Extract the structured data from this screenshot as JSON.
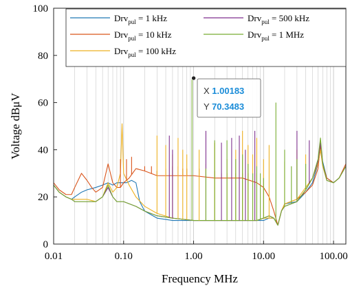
{
  "chart_data": {
    "type": "line",
    "x_scale": "log",
    "xlabel": "Frequency MHz",
    "ylabel": "Voltage dBμV",
    "xlim": [
      0.01,
      150
    ],
    "ylim": [
      0,
      100
    ],
    "x_ticks": [
      0.01,
      0.1,
      1,
      10,
      100
    ],
    "x_tick_labels": [
      "0.01",
      "0.10",
      "1.00",
      "10.00",
      "100.00"
    ],
    "y_ticks": [
      0,
      20,
      40,
      60,
      80,
      100
    ],
    "y_tick_labels": [
      "0",
      "20",
      "40",
      "60",
      "80",
      "100"
    ],
    "grid": "on (log minor vertical lines)",
    "legend": {
      "placement": "top",
      "entries": [
        {
          "base": "Drv",
          "sub": "pul",
          "suffix": " = 1 kHz"
        },
        {
          "base": "Drv",
          "sub": "pul",
          "suffix": " = 10 kHz"
        },
        {
          "base": "Drv",
          "sub": "pul",
          "suffix": " = 100 kHz"
        },
        {
          "base": "Drv",
          "sub": "pul",
          "suffix": " = 500 kHz"
        },
        {
          "base": "Drv",
          "sub": "pul",
          "suffix": " = 1 MHz"
        }
      ]
    },
    "series": [
      {
        "name": "Drvpul = 1 kHz",
        "color": "#1f77b4",
        "points": [
          [
            0.01,
            25
          ],
          [
            0.012,
            22
          ],
          [
            0.015,
            20
          ],
          [
            0.018,
            19
          ],
          [
            0.02,
            20
          ],
          [
            0.025,
            22
          ],
          [
            0.03,
            23
          ],
          [
            0.04,
            24
          ],
          [
            0.05,
            25
          ],
          [
            0.06,
            26
          ],
          [
            0.07,
            25
          ],
          [
            0.08,
            26
          ],
          [
            0.09,
            26
          ],
          [
            0.1,
            26
          ],
          [
            0.11,
            26
          ],
          [
            0.13,
            27
          ],
          [
            0.15,
            26
          ],
          [
            0.17,
            18
          ],
          [
            0.2,
            14
          ],
          [
            0.3,
            11
          ],
          [
            0.5,
            10
          ],
          [
            1,
            10
          ],
          [
            2,
            10
          ],
          [
            3,
            10
          ],
          [
            5,
            10
          ],
          [
            8,
            10
          ],
          [
            10,
            10
          ],
          [
            12,
            11
          ],
          [
            14,
            11
          ],
          [
            16,
            8
          ],
          [
            18,
            14
          ],
          [
            20,
            17
          ],
          [
            30,
            18
          ],
          [
            40,
            22
          ],
          [
            50,
            26
          ],
          [
            60,
            34
          ],
          [
            65,
            40
          ],
          [
            70,
            35
          ],
          [
            80,
            28
          ],
          [
            100,
            26
          ],
          [
            120,
            28
          ],
          [
            150,
            33
          ]
        ]
      },
      {
        "name": "Drvpul = 10 kHz",
        "color": "#d95319",
        "points": [
          [
            0.01,
            26
          ],
          [
            0.012,
            23
          ],
          [
            0.015,
            21
          ],
          [
            0.018,
            21
          ],
          [
            0.02,
            24
          ],
          [
            0.025,
            30
          ],
          [
            0.03,
            27
          ],
          [
            0.035,
            24
          ],
          [
            0.04,
            22
          ],
          [
            0.05,
            24
          ],
          [
            0.06,
            34
          ],
          [
            0.07,
            26
          ],
          [
            0.08,
            24
          ],
          [
            0.09,
            24
          ],
          [
            0.1,
            26
          ],
          [
            0.12,
            28
          ],
          [
            0.15,
            32
          ],
          [
            0.2,
            31
          ],
          [
            0.3,
            29
          ],
          [
            0.5,
            29
          ],
          [
            1,
            29
          ],
          [
            2,
            28
          ],
          [
            3,
            28
          ],
          [
            5,
            28
          ],
          [
            8,
            26
          ],
          [
            10,
            24
          ],
          [
            12,
            20
          ],
          [
            14,
            14
          ],
          [
            16,
            8
          ],
          [
            18,
            14
          ],
          [
            20,
            17
          ],
          [
            30,
            19
          ],
          [
            40,
            22
          ],
          [
            50,
            25
          ],
          [
            60,
            32
          ],
          [
            65,
            42
          ],
          [
            70,
            34
          ],
          [
            80,
            28
          ],
          [
            100,
            26
          ],
          [
            120,
            28
          ],
          [
            150,
            34
          ]
        ]
      },
      {
        "name": "Drvpul = 100 kHz",
        "color": "#edb120",
        "points": [
          [
            0.01,
            25
          ],
          [
            0.012,
            22
          ],
          [
            0.015,
            20
          ],
          [
            0.018,
            19
          ],
          [
            0.02,
            19
          ],
          [
            0.03,
            19
          ],
          [
            0.04,
            18
          ],
          [
            0.05,
            20
          ],
          [
            0.06,
            26
          ],
          [
            0.07,
            22
          ],
          [
            0.08,
            24
          ],
          [
            0.09,
            30
          ],
          [
            0.095,
            51
          ],
          [
            0.1,
            30
          ],
          [
            0.12,
            25
          ],
          [
            0.15,
            20
          ],
          [
            0.2,
            16
          ],
          [
            0.3,
            13
          ],
          [
            0.5,
            11
          ],
          [
            1,
            10
          ],
          [
            2,
            10
          ],
          [
            3,
            10
          ],
          [
            5,
            10
          ],
          [
            8,
            10
          ],
          [
            10,
            11
          ],
          [
            12,
            11
          ],
          [
            14,
            11
          ],
          [
            16,
            8
          ],
          [
            18,
            14
          ],
          [
            20,
            17
          ],
          [
            30,
            19
          ],
          [
            40,
            24
          ],
          [
            50,
            28
          ],
          [
            60,
            34
          ],
          [
            65,
            40
          ],
          [
            70,
            33
          ],
          [
            80,
            27
          ],
          [
            100,
            26
          ],
          [
            120,
            28
          ],
          [
            150,
            33
          ]
        ]
      },
      {
        "name": "Drvpul = 500 kHz",
        "color": "#7e2f8e",
        "points": [
          [
            0.01,
            25
          ],
          [
            0.012,
            22
          ],
          [
            0.015,
            20
          ],
          [
            0.018,
            19
          ],
          [
            0.02,
            18
          ],
          [
            0.03,
            18
          ],
          [
            0.04,
            18
          ],
          [
            0.05,
            20
          ],
          [
            0.06,
            24
          ],
          [
            0.07,
            20
          ],
          [
            0.08,
            18
          ],
          [
            0.1,
            18
          ],
          [
            0.15,
            16
          ],
          [
            0.2,
            14
          ],
          [
            0.3,
            12
          ],
          [
            0.5,
            11
          ],
          [
            1,
            10
          ],
          [
            2,
            10
          ],
          [
            3,
            10
          ],
          [
            5,
            10
          ],
          [
            8,
            10
          ],
          [
            10,
            11
          ],
          [
            12,
            12
          ],
          [
            14,
            11
          ],
          [
            16,
            8
          ],
          [
            18,
            14
          ],
          [
            20,
            16
          ],
          [
            30,
            18
          ],
          [
            40,
            23
          ],
          [
            50,
            28
          ],
          [
            60,
            35
          ],
          [
            65,
            43
          ],
          [
            70,
            34
          ],
          [
            80,
            27
          ],
          [
            100,
            26
          ],
          [
            120,
            28
          ],
          [
            150,
            33
          ]
        ]
      },
      {
        "name": "Drvpul = 1 MHz",
        "color": "#77ac30",
        "points": [
          [
            0.01,
            25
          ],
          [
            0.012,
            22
          ],
          [
            0.015,
            20
          ],
          [
            0.018,
            19
          ],
          [
            0.02,
            18
          ],
          [
            0.03,
            18
          ],
          [
            0.04,
            18
          ],
          [
            0.05,
            20
          ],
          [
            0.06,
            25
          ],
          [
            0.07,
            20
          ],
          [
            0.08,
            18
          ],
          [
            0.1,
            18
          ],
          [
            0.15,
            16
          ],
          [
            0.2,
            14
          ],
          [
            0.3,
            12
          ],
          [
            0.5,
            11
          ],
          [
            1,
            10
          ],
          [
            2,
            10
          ],
          [
            3,
            10
          ],
          [
            5,
            10
          ],
          [
            8,
            10
          ],
          [
            10,
            11
          ],
          [
            12,
            12
          ],
          [
            14,
            11
          ],
          [
            16,
            8
          ],
          [
            18,
            14
          ],
          [
            20,
            16
          ],
          [
            30,
            18
          ],
          [
            40,
            23
          ],
          [
            50,
            28
          ],
          [
            60,
            36
          ],
          [
            65,
            45
          ],
          [
            70,
            34
          ],
          [
            80,
            27
          ],
          [
            100,
            26
          ],
          [
            120,
            28
          ],
          [
            150,
            33
          ]
        ]
      }
    ],
    "spikes": [
      {
        "series": "Drvpul = 10 kHz",
        "x": [
          0.09,
          0.11,
          0.13,
          0.16,
          0.2,
          0.25,
          0.3,
          0.4,
          0.5,
          0.6,
          0.7,
          0.8,
          1.2,
          1.5,
          2,
          2.5,
          3,
          4,
          5,
          6,
          7,
          8
        ],
        "y": [
          36,
          36,
          37,
          32,
          33,
          33,
          31,
          32,
          33,
          33,
          32,
          32,
          32,
          32,
          31,
          30,
          30,
          30,
          30,
          30,
          30,
          30
        ]
      },
      {
        "series": "Drvpul = 100 kHz",
        "x": [
          0.3,
          0.4,
          0.5,
          0.6,
          0.7,
          0.8,
          1.2,
          1.5,
          2,
          3,
          4,
          5,
          6,
          7,
          8,
          10,
          12,
          20,
          30,
          40
        ],
        "y": [
          46,
          42,
          38,
          45,
          40,
          38,
          40,
          34,
          43,
          36,
          40,
          48,
          42,
          38,
          45,
          36,
          42,
          35,
          40,
          38
        ]
      },
      {
        "series": "Drvpul = 500 kHz",
        "x": [
          0.45,
          0.5,
          1.5,
          2.5,
          3.5,
          4.5,
          5.5,
          7.5,
          30,
          45
        ],
        "y": [
          46,
          40,
          48,
          43,
          45,
          46,
          40,
          48,
          48,
          44
        ]
      },
      {
        "series": "Drvpul = 1 MHz",
        "x": [
          0.95,
          1.5,
          2,
          3,
          4,
          5,
          6,
          7,
          8,
          9,
          10,
          15,
          20,
          25,
          30,
          40
        ],
        "y": [
          70.35,
          32,
          44,
          44,
          36,
          38,
          34,
          30,
          33,
          30,
          28,
          60,
          40,
          33,
          36,
          34
        ]
      }
    ],
    "datatip": {
      "x_label": "X",
      "x_value": "1.00183",
      "y_label": "Y",
      "y_value": "70.3483",
      "x": 1.00183,
      "y": 70.3483
    }
  }
}
